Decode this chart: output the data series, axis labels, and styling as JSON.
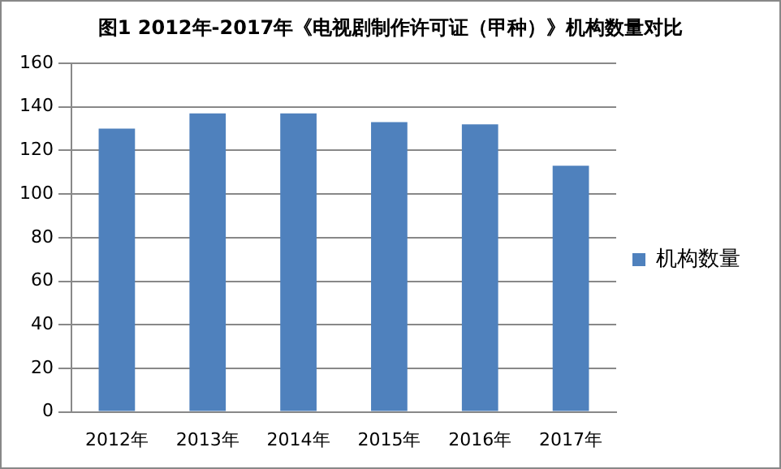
{
  "chart_data": {
    "type": "bar",
    "title": "图1 2012年-2017年《电视剧制作许可证（甲种）》机构数量对比",
    "categories": [
      "2012年",
      "2013年",
      "2014年",
      "2015年",
      "2016年",
      "2017年"
    ],
    "series": [
      {
        "name": "机构数量",
        "color": "#4f81bd",
        "values": [
          130,
          137,
          137,
          133,
          132,
          113
        ]
      }
    ],
    "ylim": [
      0,
      160
    ],
    "yticks": [
      0,
      20,
      40,
      60,
      80,
      100,
      120,
      140,
      160
    ],
    "grid": "y",
    "legend": "right"
  }
}
